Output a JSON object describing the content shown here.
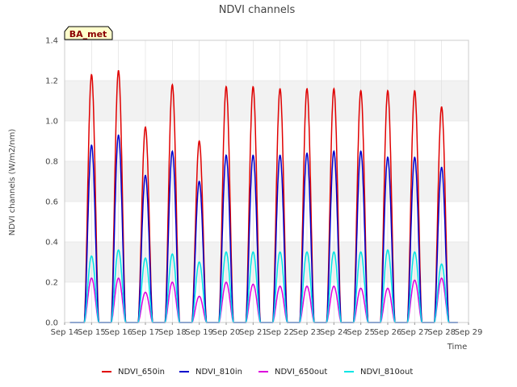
{
  "chart_data": {
    "type": "line",
    "title": "NDVI channels",
    "xlabel": "Time",
    "ylabel": "NDVI channels (W/m2/nm)",
    "ylim": [
      0,
      1.4
    ],
    "yticks": [
      "0.0",
      "0.2",
      "0.4",
      "0.6",
      "0.8",
      "1.0",
      "1.2",
      "1.4"
    ],
    "xlim": [
      14,
      29
    ],
    "xticks": [
      "Sep 14",
      "Sep 15",
      "Sep 16",
      "Sep 17",
      "Sep 18",
      "Sep 19",
      "Sep 20",
      "Sep 21",
      "Sep 22",
      "Sep 23",
      "Sep 24",
      "Sep 25",
      "Sep 26",
      "Sep 27",
      "Sep 28",
      "Sep 29"
    ],
    "grid": true,
    "legend_position": "bottom",
    "annotation": "BA_met",
    "day_peaks": [
      15,
      16,
      17,
      18,
      19,
      20,
      21,
      22,
      23,
      24,
      25,
      26,
      27,
      28
    ],
    "series": [
      {
        "name": "NDVI_650in",
        "color": "#e00000",
        "peaks": [
          1.23,
          1.25,
          0.97,
          1.18,
          0.9,
          1.17,
          1.17,
          1.16,
          1.16,
          1.16,
          1.15,
          1.15,
          1.15,
          1.07
        ]
      },
      {
        "name": "NDVI_810in",
        "color": "#0000cc",
        "peaks": [
          0.88,
          0.93,
          0.73,
          0.85,
          0.7,
          0.83,
          0.83,
          0.83,
          0.84,
          0.85,
          0.85,
          0.82,
          0.82,
          0.77
        ]
      },
      {
        "name": "NDVI_650out",
        "color": "#dd00dd",
        "peaks": [
          0.22,
          0.22,
          0.15,
          0.2,
          0.13,
          0.2,
          0.19,
          0.18,
          0.18,
          0.18,
          0.17,
          0.17,
          0.21,
          0.22
        ]
      },
      {
        "name": "NDVI_810out",
        "color": "#00e5e5",
        "peaks": [
          0.33,
          0.36,
          0.32,
          0.34,
          0.3,
          0.35,
          0.35,
          0.35,
          0.35,
          0.35,
          0.35,
          0.36,
          0.35,
          0.29
        ]
      }
    ]
  }
}
